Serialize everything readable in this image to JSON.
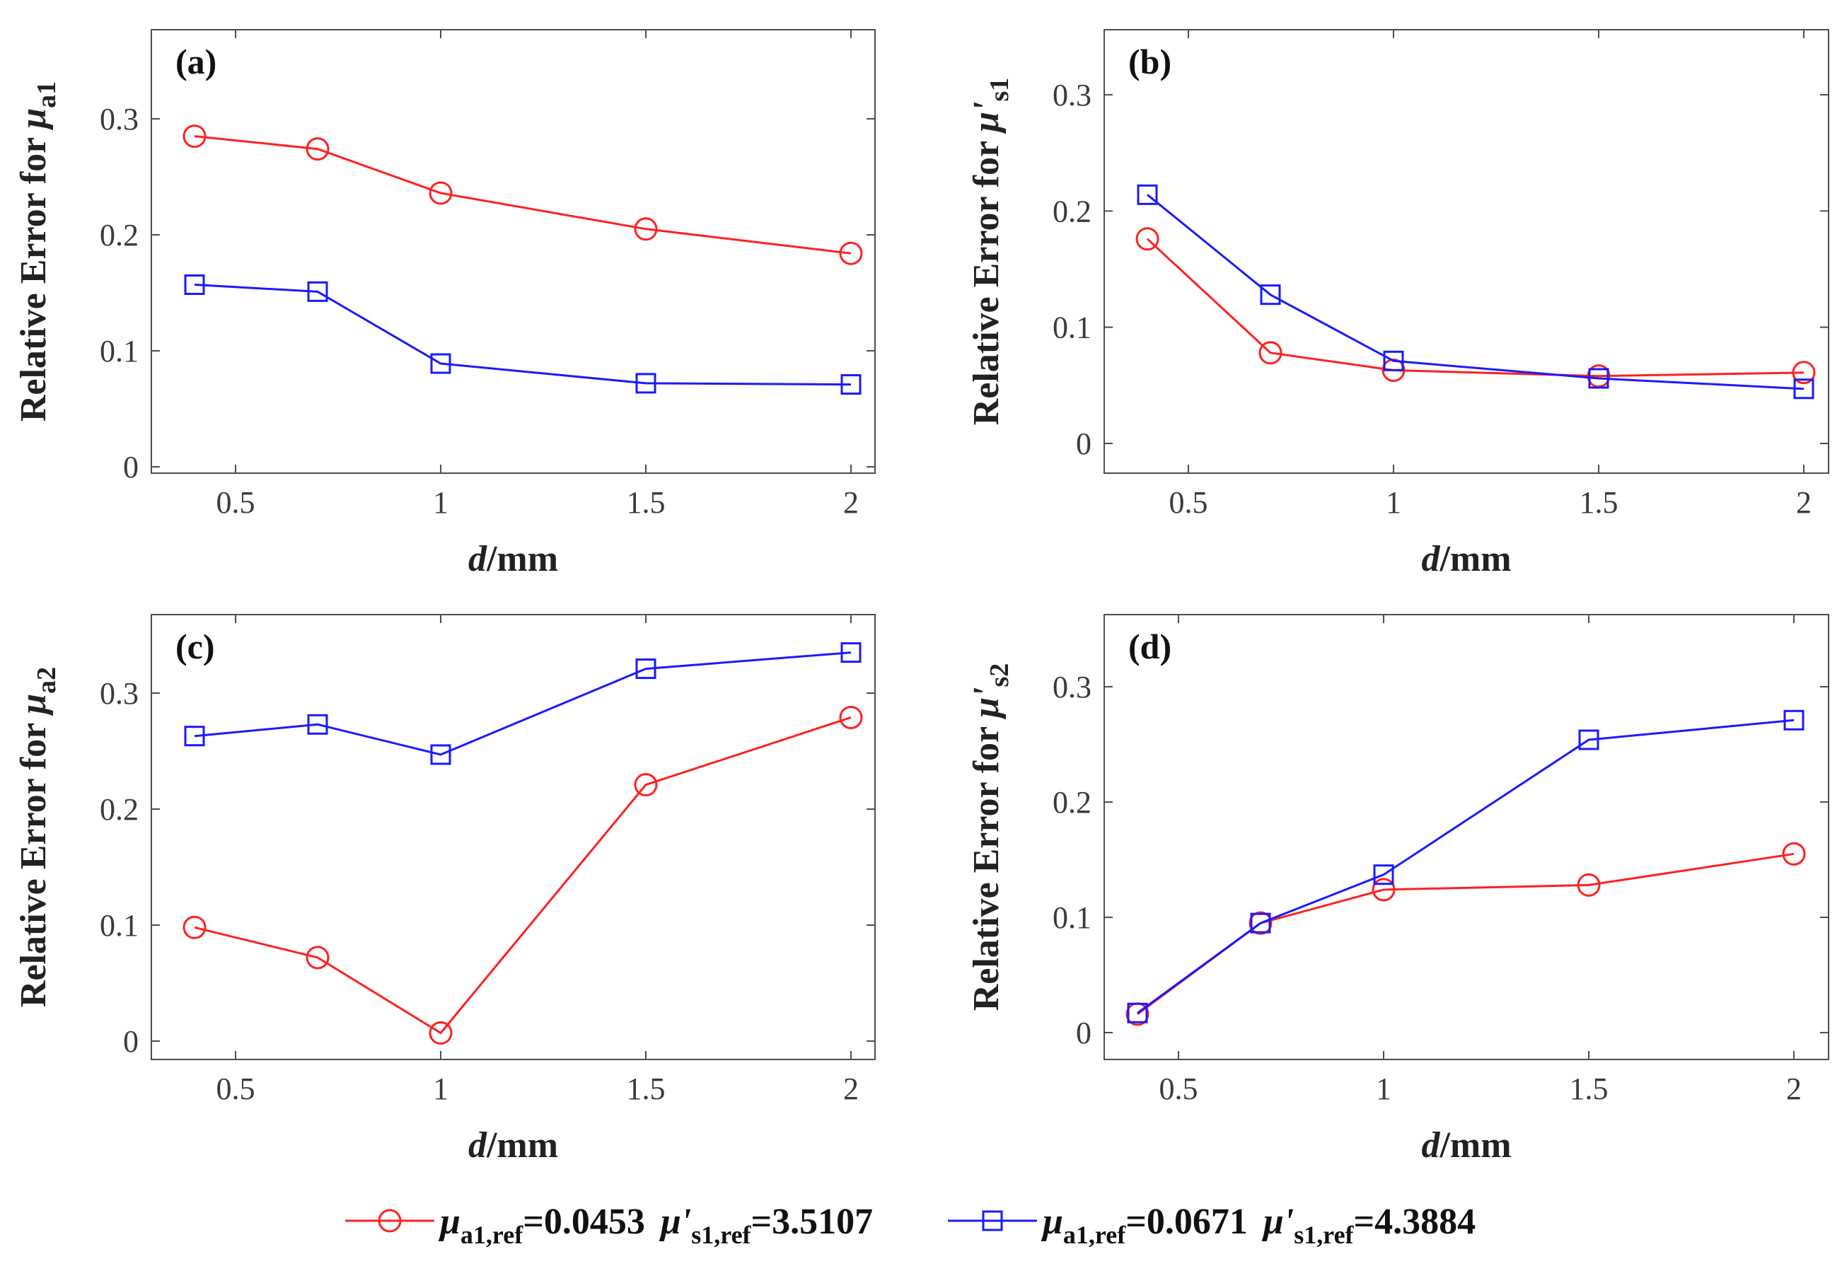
{
  "colors": {
    "series1": "#ff2020",
    "series2": "#1a1aff",
    "axis": "#4d4d4d"
  },
  "legend": {
    "entries": [
      {
        "mu_a": "μ",
        "mu_a_sub": "a1,ref",
        "val_a": "=0.0453",
        "mu_s": "μ'",
        "mu_s_sub": "s1,ref",
        "val_s": "=3.5107",
        "marker": "circle"
      },
      {
        "mu_a": "μ",
        "mu_a_sub": "a1,ref",
        "val_a": "=0.0671",
        "mu_s": "μ'",
        "mu_s_sub": "s1,ref",
        "val_s": "=4.3884",
        "marker": "square"
      }
    ]
  },
  "chart_data": [
    {
      "type": "line",
      "panel_label": "(a)",
      "ylabel_prefix": "Relative Error for ",
      "ylabel_symbol": "μ",
      "ylabel_sub": "a1",
      "xlabel_italic": "d",
      "xlabel_rest": "/mm",
      "x": [
        0.4,
        0.7,
        1,
        1.5,
        2
      ],
      "xticks": [
        "0.5",
        "1",
        "1.5",
        "2"
      ],
      "yticks": [
        "0",
        "0.1",
        "0.2",
        "0.3"
      ],
      "xlim": [
        0.3,
        2.05
      ],
      "ylim": [
        -0.01,
        0.36
      ],
      "series": [
        {
          "name": "μa1,ref=0.0453 μ's1,ref=3.5107",
          "marker": "circle",
          "values": [
            0.285,
            0.274,
            0.236,
            0.205,
            0.184
          ]
        },
        {
          "name": "μa1,ref=0.0671 μ's1,ref=4.3884",
          "marker": "square",
          "values": [
            0.157,
            0.151,
            0.089,
            0.072,
            0.071
          ]
        }
      ]
    },
    {
      "type": "line",
      "panel_label": "(b)",
      "ylabel_prefix": "Relative Error for ",
      "ylabel_symbol": "μ'",
      "ylabel_sub": "s1",
      "xlabel_italic": "d",
      "xlabel_rest": "/mm",
      "x": [
        0.4,
        0.7,
        1,
        1.5,
        2
      ],
      "xticks": [
        "0.5",
        "1",
        "1.5",
        "2"
      ],
      "yticks": [
        "0",
        "0.1",
        "0.2",
        "0.3"
      ],
      "xlim": [
        0.3,
        2.05
      ],
      "ylim": [
        -0.025,
        0.36
      ],
      "series": [
        {
          "name": "μa1,ref=0.0453 μ's1,ref=3.5107",
          "marker": "circle",
          "values": [
            0.176,
            0.078,
            0.063,
            0.058,
            0.061
          ]
        },
        {
          "name": "μa1,ref=0.0671 μ's1,ref=4.3884",
          "marker": "square",
          "values": [
            0.214,
            0.128,
            0.071,
            0.056,
            0.047
          ]
        }
      ]
    },
    {
      "type": "line",
      "panel_label": "(c)",
      "ylabel_prefix": "Relative Error for ",
      "ylabel_symbol": "μ",
      "ylabel_sub": "a2",
      "xlabel_italic": "d",
      "xlabel_rest": "/mm",
      "x": [
        0.4,
        0.7,
        1,
        1.5,
        2
      ],
      "xticks": [
        "0.5",
        "1",
        "1.5",
        "2"
      ],
      "yticks": [
        "0",
        "0.1",
        "0.2",
        "0.3"
      ],
      "xlim": [
        0.3,
        2.05
      ],
      "ylim": [
        -0.018,
        0.365
      ],
      "series": [
        {
          "name": "μa1,ref=0.0453 μ's1,ref=3.5107",
          "marker": "circle",
          "values": [
            0.098,
            0.072,
            0.007,
            0.221,
            0.279
          ]
        },
        {
          "name": "μa1,ref=0.0671 μ's1,ref=4.3884",
          "marker": "square",
          "values": [
            0.263,
            0.273,
            0.247,
            0.321,
            0.335
          ]
        }
      ]
    },
    {
      "type": "line",
      "panel_label": "(d)",
      "ylabel_prefix": "Relative Error for ",
      "ylabel_symbol": "μ'",
      "ylabel_sub": "s2",
      "xlabel_italic": "d",
      "xlabel_rest": "/mm",
      "x": [
        0.4,
        0.7,
        1,
        1.5,
        2
      ],
      "xticks": [
        "0.5",
        "1",
        "1.5",
        "2"
      ],
      "yticks": [
        "0",
        "0.1",
        "0.2",
        "0.3"
      ],
      "xlim": [
        0.3,
        2.05
      ],
      "ylim": [
        -0.025,
        0.36
      ],
      "series": [
        {
          "name": "μa1,ref=0.0453 μ's1,ref=3.5107",
          "marker": "circle",
          "values": [
            0.016,
            0.095,
            0.124,
            0.128,
            0.155
          ]
        },
        {
          "name": "μa1,ref=0.0671 μ's1,ref=4.3884",
          "marker": "square",
          "values": [
            0.017,
            0.095,
            0.137,
            0.254,
            0.271
          ]
        }
      ]
    }
  ]
}
